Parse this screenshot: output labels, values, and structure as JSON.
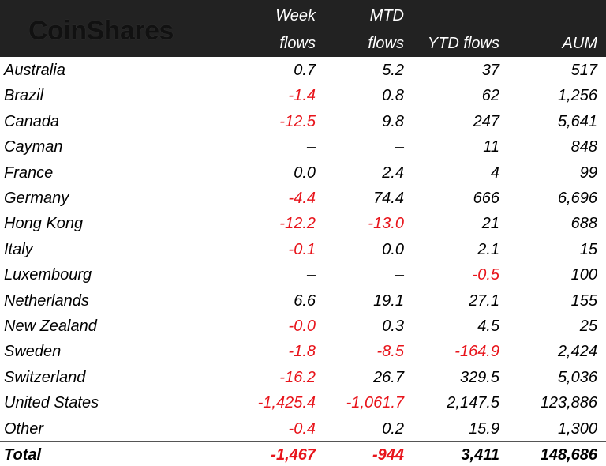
{
  "header": {
    "logo": "CoinShares",
    "columns": [
      [
        "Week",
        "flows"
      ],
      [
        "MTD",
        "flows"
      ],
      [
        "YTD flows"
      ],
      [
        "AUM"
      ]
    ]
  },
  "table": {
    "rows": [
      [
        "Australia",
        "0.7",
        "5.2",
        "37",
        "517"
      ],
      [
        "Brazil",
        "-1.4",
        "0.8",
        "62",
        "1,256"
      ],
      [
        "Canada",
        "-12.5",
        "9.8",
        "247",
        "5,641"
      ],
      [
        "Cayman",
        "–",
        "–",
        "11",
        "848"
      ],
      [
        "France",
        "0.0",
        "2.4",
        "4",
        "99"
      ],
      [
        "Germany",
        "-4.4",
        "74.4",
        "666",
        "6,696"
      ],
      [
        "Hong Kong",
        "-12.2",
        "-13.0",
        "21",
        "688"
      ],
      [
        "Italy",
        "-0.1",
        "0.0",
        "2.1",
        "15"
      ],
      [
        "Luxembourg",
        "–",
        "–",
        "-0.5",
        "100"
      ],
      [
        "Netherlands",
        "6.6",
        "19.1",
        "27.1",
        "155"
      ],
      [
        "New Zealand",
        "-0.0",
        "0.3",
        "4.5",
        "25"
      ],
      [
        "Sweden",
        "-1.8",
        "-8.5",
        "-164.9",
        "2,424"
      ],
      [
        "Switzerland",
        "-16.2",
        "26.7",
        "329.5",
        "5,036"
      ],
      [
        "United States",
        "-1,425.4",
        "-1,061.7",
        "2,147.5",
        "123,886"
      ],
      [
        "Other",
        "-0.4",
        "0.2",
        "15.9",
        "1,300"
      ]
    ],
    "total": [
      "Total",
      "-1,467",
      "-944",
      "3,411",
      "148,686"
    ]
  }
}
